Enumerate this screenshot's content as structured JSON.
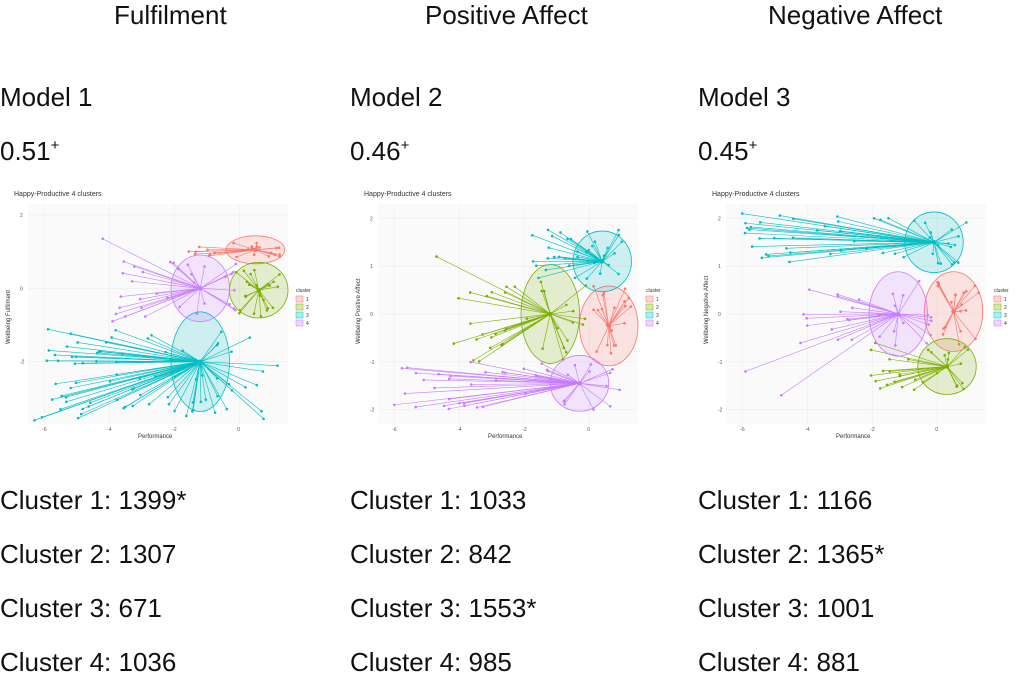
{
  "panels": [
    {
      "header": "Fulfilment",
      "model": "Model 1",
      "score": "0.51",
      "score_mark": "+",
      "counts": [
        "Cluster 1: 1399*",
        "Cluster 2: 1307",
        "Cluster 3: 671",
        "Cluster 4: 1036"
      ]
    },
    {
      "header": "Positive Affect",
      "model": "Model 2",
      "score": "0.46",
      "score_mark": "+",
      "counts": [
        "Cluster 1: 1033",
        "Cluster 2: 842",
        "Cluster 3: 1553*",
        "Cluster 4: 985"
      ]
    },
    {
      "header": "Negative Affect",
      "model": "Model 3",
      "score": "0.45",
      "score_mark": "+",
      "counts": [
        "Cluster 1: 1166",
        "Cluster 2: 1365*",
        "Cluster 3: 1001",
        "Cluster 4: 881"
      ]
    }
  ],
  "chart_data": [
    {
      "type": "scatter",
      "title": "Happy-Productive 4 clusters",
      "xlabel": "Performance",
      "ylabel": "Wellbeing Fulfilment",
      "xlim": [
        -6.5,
        1.5
      ],
      "ylim": [
        -3.7,
        2.3
      ],
      "xticks": [
        -6,
        -4,
        -2,
        0
      ],
      "yticks": [
        -2,
        0,
        2
      ],
      "legend_title": "cluster",
      "legend": [
        "1",
        "2",
        "3",
        "4"
      ],
      "clusters": [
        {
          "name": "1",
          "centroid": [
            0.5,
            1.05
          ],
          "xrange": [
            -1.7,
            1.3
          ],
          "yrange": [
            0.85,
            1.3
          ],
          "n": 24,
          "outliers": []
        },
        {
          "name": "2",
          "centroid": [
            0.6,
            -0.05
          ],
          "xrange": [
            -0.2,
            1.3
          ],
          "yrange": [
            -0.8,
            0.5
          ],
          "n": 24,
          "outliers": []
        },
        {
          "name": "3",
          "centroid": [
            -1.2,
            -2.0
          ],
          "xrange": [
            -6.2,
            1.2
          ],
          "yrange": [
            -3.6,
            -1.1
          ],
          "n": 80,
          "outliers": [
            [
              -6.3,
              -3.6
            ],
            [
              -5.5,
              -3.3
            ]
          ]
        },
        {
          "name": "4",
          "centroid": [
            -1.2,
            0.0
          ],
          "xrange": [
            -3.8,
            0.0
          ],
          "yrange": [
            -0.8,
            0.8
          ],
          "n": 32,
          "outliers": [
            [
              -4.2,
              1.35
            ],
            [
              -3.9,
              -0.9
            ]
          ]
        }
      ]
    },
    {
      "type": "scatter",
      "title": "Happy-Productive 4 clusters",
      "xlabel": "Performance",
      "ylabel": "Wellbeing Positive Affect",
      "xlim": [
        -6.5,
        1.5
      ],
      "ylim": [
        -2.3,
        2.3
      ],
      "xticks": [
        -6,
        -4,
        -2,
        0
      ],
      "yticks": [
        -2,
        -1,
        0,
        1,
        2
      ],
      "legend_title": "cluster",
      "legend": [
        "1",
        "2",
        "3",
        "4"
      ],
      "clusters": [
        {
          "name": "1",
          "centroid": [
            0.6,
            -0.25
          ],
          "xrange": [
            0.0,
            1.3
          ],
          "yrange": [
            -0.9,
            0.6
          ],
          "n": 20,
          "outliers": []
        },
        {
          "name": "2",
          "centroid": [
            -1.2,
            0.0
          ],
          "xrange": [
            -4.2,
            0.0
          ],
          "yrange": [
            -1.0,
            0.9
          ],
          "n": 36,
          "outliers": [
            [
              -4.7,
              1.2
            ]
          ]
        },
        {
          "name": "3",
          "centroid": [
            0.4,
            1.1
          ],
          "xrange": [
            -1.8,
            1.3
          ],
          "yrange": [
            0.7,
            1.8
          ],
          "n": 36,
          "outliers": []
        },
        {
          "name": "4",
          "centroid": [
            -0.3,
            -1.45
          ],
          "xrange": [
            -6.0,
            1.3
          ],
          "yrange": [
            -2.0,
            -1.0
          ],
          "n": 44,
          "outliers": [
            [
              -6.0,
              -1.9
            ]
          ]
        }
      ]
    },
    {
      "type": "scatter",
      "title": "Happy-Productive 4 clusters",
      "xlabel": "Performance",
      "ylabel": "Wellbeing Negative Affect",
      "xlim": [
        -6.5,
        1.5
      ],
      "ylim": [
        -2.3,
        2.3
      ],
      "xticks": [
        -6,
        -4,
        -2,
        0
      ],
      "yticks": [
        -2,
        -1,
        0,
        1,
        2
      ],
      "legend_title": "cluster",
      "legend": [
        "1",
        "2",
        "3",
        "4"
      ],
      "clusters": [
        {
          "name": "1",
          "centroid": [
            0.5,
            0.05
          ],
          "xrange": [
            0.0,
            1.3
          ],
          "yrange": [
            -0.7,
            0.8
          ],
          "n": 20,
          "outliers": []
        },
        {
          "name": "2",
          "centroid": [
            0.3,
            -1.1
          ],
          "xrange": [
            -2.2,
            1.3
          ],
          "yrange": [
            -1.6,
            -0.6
          ],
          "n": 30,
          "outliers": []
        },
        {
          "name": "3",
          "centroid": [
            -0.1,
            1.5
          ],
          "xrange": [
            -6.0,
            1.3
          ],
          "yrange": [
            1.0,
            2.1
          ],
          "n": 50,
          "outliers": [
            [
              -6.0,
              2.1
            ],
            [
              -5.9,
              1.9
            ]
          ]
        },
        {
          "name": "4",
          "centroid": [
            -1.2,
            0.0
          ],
          "xrange": [
            -4.4,
            0.0
          ],
          "yrange": [
            -0.8,
            0.8
          ],
          "n": 30,
          "outliers": [
            [
              -5.9,
              -1.2
            ],
            [
              -4.8,
              -1.7
            ]
          ]
        }
      ]
    }
  ],
  "colors": {
    "1": "#F8766D",
    "2": "#7CAE00",
    "3": "#00BFC4",
    "4": "#C77CFF"
  }
}
